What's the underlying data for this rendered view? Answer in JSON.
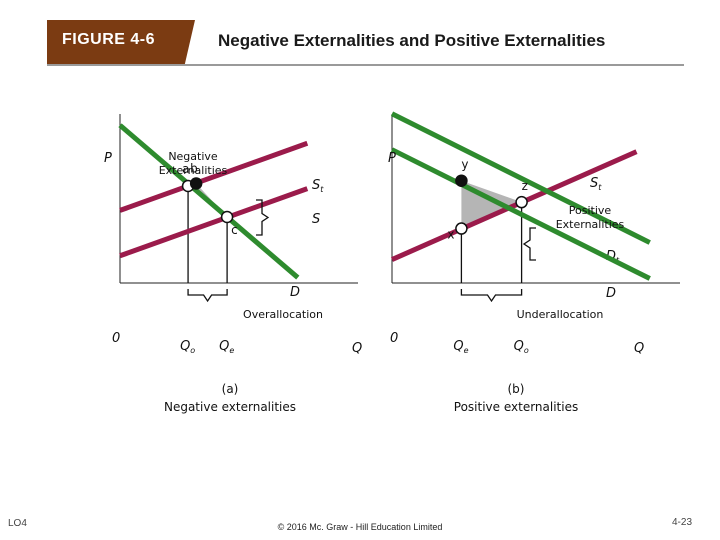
{
  "header": {
    "figure_label": "FIGURE 4-6",
    "title": "Negative Externalities and Positive Externalities"
  },
  "footer": {
    "left": "LO4",
    "center": "© 2016 Mc. Graw - Hill Education Limited",
    "right": "4-23"
  },
  "colors": {
    "supply": "#9b1b4b",
    "demand": "#2e8b2e",
    "tab": "#7b3b12",
    "triangle": "#b5b5b5"
  },
  "chart_data": [
    {
      "type": "line",
      "panel": "a",
      "caption_line1": "(a)",
      "caption_line2": "Negative externalities",
      "ylabel": "P",
      "xlabel": "Q",
      "origin_label": "0",
      "annotation": "Negative Externalities",
      "bracket_label": "Overallocation",
      "xlim": [
        0,
        10
      ],
      "ylim": [
        0,
        10
      ],
      "series": [
        {
          "label": "St",
          "kind": "supply",
          "x": [
            0,
            7.87
          ],
          "y": [
            4.4,
            8.47
          ]
        },
        {
          "label": "S",
          "kind": "supply",
          "x": [
            0,
            7.87
          ],
          "y": [
            1.65,
            5.72
          ]
        },
        {
          "label": "D",
          "kind": "demand",
          "x": [
            0,
            7.47
          ],
          "y": [
            9.56,
            0.33
          ]
        }
      ],
      "points": [
        {
          "label": "a",
          "x": 2.86,
          "y": 5.88,
          "fill": "white"
        },
        {
          "label": "b",
          "x": 3.2,
          "y": 6.03,
          "fill": "black"
        },
        {
          "label": "c",
          "x": 4.5,
          "y": 4.0,
          "fill": "white"
        }
      ],
      "x_ticks": [
        {
          "label": "Qo",
          "x": 2.86
        },
        {
          "label": "Qe",
          "x": 4.5
        }
      ]
    },
    {
      "type": "line",
      "panel": "b",
      "caption_line1": "(b)",
      "caption_line2": "Positive externalities",
      "ylabel": "P",
      "xlabel": "Q",
      "origin_label": "0",
      "annotation": "Positive Externalities",
      "bracket_label": "Underallocation",
      "xlim": [
        0,
        10
      ],
      "ylim": [
        0,
        10
      ],
      "series": [
        {
          "label": "St",
          "kind": "supply",
          "x": [
            0,
            8.49
          ],
          "y": [
            1.42,
            7.96
          ]
        },
        {
          "label": "Dt",
          "kind": "demand",
          "x": [
            0,
            8.95
          ],
          "y": [
            10.26,
            2.45
          ]
        },
        {
          "label": "D",
          "kind": "demand",
          "x": [
            0,
            8.95
          ],
          "y": [
            8.08,
            0.27
          ]
        }
      ],
      "points": [
        {
          "label": "x",
          "x": 2.41,
          "y": 3.3,
          "fill": "white"
        },
        {
          "label": "y",
          "x": 2.41,
          "y": 6.2,
          "fill": "black"
        },
        {
          "label": "z",
          "x": 4.5,
          "y": 4.9,
          "fill": "white"
        }
      ],
      "x_ticks": [
        {
          "label": "Qe",
          "x": 2.41
        },
        {
          "label": "Qo",
          "x": 4.5
        }
      ]
    }
  ]
}
